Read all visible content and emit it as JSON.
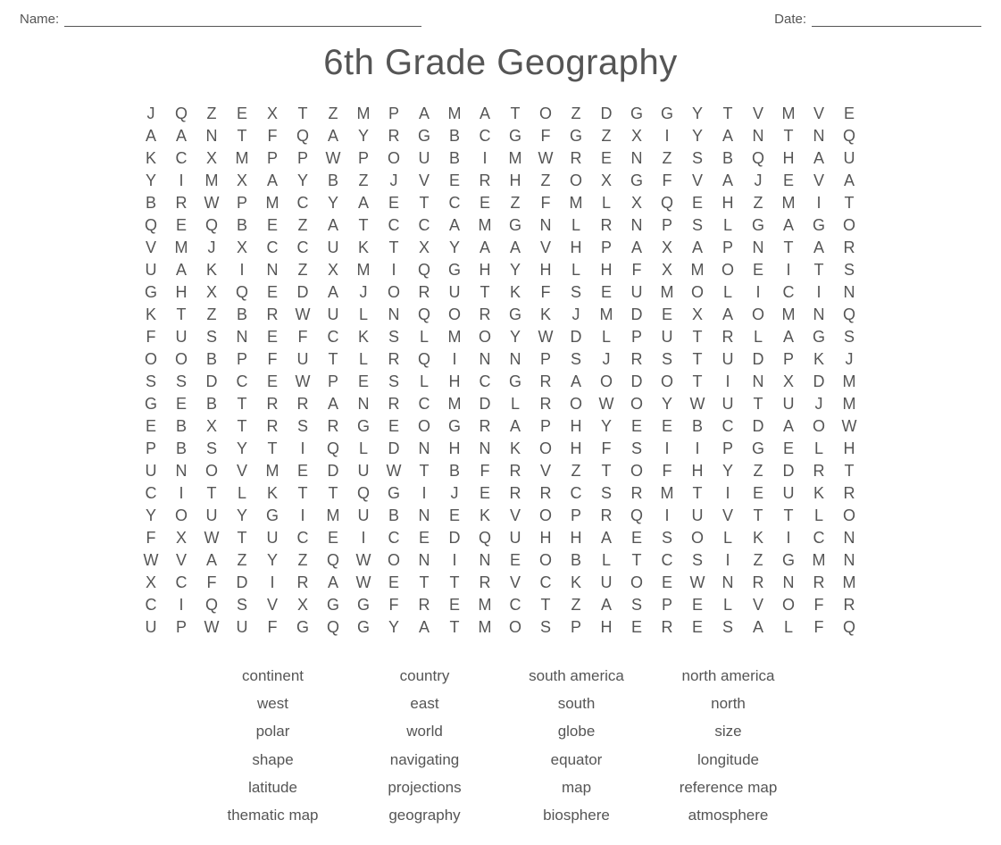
{
  "header": {
    "name_label": "Name:",
    "date_label": "Date:"
  },
  "title": "6th Grade Geography",
  "grid": {
    "rows": [
      [
        "J",
        "Q",
        "Z",
        "E",
        "X",
        "T",
        "Z",
        "M",
        "P",
        "A",
        "M",
        "A",
        "T",
        "O",
        "Z",
        "D",
        "G",
        "G",
        "Y",
        "T",
        "V",
        "M",
        "V",
        "E"
      ],
      [
        "A",
        "A",
        "N",
        "T",
        "F",
        "Q",
        "A",
        "Y",
        "R",
        "G",
        "B",
        "C",
        "G",
        "F",
        "G",
        "Z",
        "X",
        "I",
        "Y",
        "A",
        "N",
        "T",
        "N",
        "Q"
      ],
      [
        "K",
        "C",
        "X",
        "M",
        "P",
        "P",
        "W",
        "P",
        "O",
        "U",
        "B",
        "I",
        "M",
        "W",
        "R",
        "E",
        "N",
        "Z",
        "S",
        "B",
        "Q",
        "H",
        "A",
        "U"
      ],
      [
        "Y",
        "I",
        "M",
        "X",
        "A",
        "Y",
        "B",
        "Z",
        "J",
        "V",
        "E",
        "R",
        "H",
        "Z",
        "O",
        "X",
        "G",
        "F",
        "V",
        "A",
        "J",
        "E",
        "V",
        "A"
      ],
      [
        "B",
        "R",
        "W",
        "P",
        "M",
        "C",
        "Y",
        "A",
        "E",
        "T",
        "C",
        "E",
        "Z",
        "F",
        "M",
        "L",
        "X",
        "Q",
        "E",
        "H",
        "Z",
        "M",
        "I",
        "T"
      ],
      [
        "Q",
        "E",
        "Q",
        "B",
        "E",
        "Z",
        "A",
        "T",
        "C",
        "C",
        "A",
        "M",
        "G",
        "N",
        "L",
        "R",
        "N",
        "P",
        "S",
        "L",
        "G",
        "A",
        "G",
        "O"
      ],
      [
        "V",
        "M",
        "J",
        "X",
        "C",
        "C",
        "U",
        "K",
        "T",
        "X",
        "Y",
        "A",
        "A",
        "V",
        "H",
        "P",
        "A",
        "X",
        "A",
        "P",
        "N",
        "T",
        "A",
        "R"
      ],
      [
        "U",
        "A",
        "K",
        "I",
        "N",
        "Z",
        "X",
        "M",
        "I",
        "Q",
        "G",
        "H",
        "Y",
        "H",
        "L",
        "H",
        "F",
        "X",
        "M",
        "O",
        "E",
        "I",
        "T",
        "S"
      ],
      [
        "G",
        "H",
        "X",
        "Q",
        "E",
        "D",
        "A",
        "J",
        "O",
        "R",
        "U",
        "T",
        "K",
        "F",
        "S",
        "E",
        "U",
        "M",
        "O",
        "L",
        "I",
        "C",
        "I",
        "N"
      ],
      [
        "K",
        "T",
        "Z",
        "B",
        "R",
        "W",
        "U",
        "L",
        "N",
        "Q",
        "O",
        "R",
        "G",
        "K",
        "J",
        "M",
        "D",
        "E",
        "X",
        "A",
        "O",
        "M",
        "N",
        "Q"
      ],
      [
        "F",
        "U",
        "S",
        "N",
        "E",
        "F",
        "C",
        "K",
        "S",
        "L",
        "M",
        "O",
        "Y",
        "W",
        "D",
        "L",
        "P",
        "U",
        "T",
        "R",
        "L",
        "A",
        "G",
        "S"
      ],
      [
        "O",
        "O",
        "B",
        "P",
        "F",
        "U",
        "T",
        "L",
        "R",
        "Q",
        "I",
        "N",
        "N",
        "P",
        "S",
        "J",
        "R",
        "S",
        "T",
        "U",
        "D",
        "P",
        "K",
        "J"
      ],
      [
        "S",
        "S",
        "D",
        "C",
        "E",
        "W",
        "P",
        "E",
        "S",
        "L",
        "H",
        "C",
        "G",
        "R",
        "A",
        "O",
        "D",
        "O",
        "T",
        "I",
        "N",
        "X",
        "D",
        "M"
      ],
      [
        "G",
        "E",
        "B",
        "T",
        "R",
        "R",
        "A",
        "N",
        "R",
        "C",
        "M",
        "D",
        "L",
        "R",
        "O",
        "W",
        "O",
        "Y",
        "W",
        "U",
        "T",
        "U",
        "J",
        "M"
      ],
      [
        "E",
        "B",
        "X",
        "T",
        "R",
        "S",
        "R",
        "G",
        "E",
        "O",
        "G",
        "R",
        "A",
        "P",
        "H",
        "Y",
        "E",
        "E",
        "B",
        "C",
        "D",
        "A",
        "O",
        "W"
      ],
      [
        "P",
        "B",
        "S",
        "Y",
        "T",
        "I",
        "Q",
        "L",
        "D",
        "N",
        "H",
        "N",
        "K",
        "O",
        "H",
        "F",
        "S",
        "I",
        "I",
        "P",
        "G",
        "E",
        "L",
        "H"
      ],
      [
        "U",
        "N",
        "O",
        "V",
        "M",
        "E",
        "D",
        "U",
        "W",
        "T",
        "B",
        "F",
        "R",
        "V",
        "Z",
        "T",
        "O",
        "F",
        "H",
        "Y",
        "Z",
        "D",
        "R",
        "T"
      ],
      [
        "C",
        "I",
        "T",
        "L",
        "K",
        "T",
        "T",
        "Q",
        "G",
        "I",
        "J",
        "E",
        "R",
        "R",
        "C",
        "S",
        "R",
        "M",
        "T",
        "I",
        "E",
        "U",
        "K",
        "R"
      ],
      [
        "Y",
        "O",
        "U",
        "Y",
        "G",
        "I",
        "M",
        "U",
        "B",
        "N",
        "E",
        "K",
        "V",
        "O",
        "P",
        "R",
        "Q",
        "I",
        "U",
        "V",
        "T",
        "T",
        "L",
        "O"
      ],
      [
        "F",
        "X",
        "W",
        "T",
        "U",
        "C",
        "E",
        "I",
        "C",
        "E",
        "D",
        "Q",
        "U",
        "H",
        "H",
        "A",
        "E",
        "S",
        "O",
        "L",
        "K",
        "I",
        "C",
        "N"
      ],
      [
        "W",
        "V",
        "A",
        "Z",
        "Y",
        "Z",
        "Q",
        "W",
        "O",
        "N",
        "I",
        "N",
        "E",
        "O",
        "B",
        "L",
        "T",
        "C",
        "S",
        "I",
        "Z",
        "G",
        "M",
        "N"
      ],
      [
        "X",
        "C",
        "F",
        "D",
        "I",
        "R",
        "A",
        "W",
        "E",
        "T",
        "T",
        "R",
        "V",
        "C",
        "K",
        "U",
        "O",
        "E",
        "W",
        "N",
        "R",
        "N",
        "R",
        "M"
      ],
      [
        "C",
        "I",
        "Q",
        "S",
        "V",
        "X",
        "G",
        "G",
        "F",
        "R",
        "E",
        "M",
        "C",
        "T",
        "Z",
        "A",
        "S",
        "P",
        "E",
        "L",
        "V",
        "O",
        "F",
        "R"
      ],
      [
        "U",
        "P",
        "W",
        "U",
        "F",
        "G",
        "Q",
        "G",
        "Y",
        "A",
        "T",
        "M",
        "O",
        "S",
        "P",
        "H",
        "E",
        "R",
        "E",
        "S",
        "A",
        "L",
        "F",
        "Q"
      ]
    ],
    "cell_font_size": 18,
    "cell_color": "#555555",
    "cols": 24,
    "row_count": 24
  },
  "words": [
    "continent",
    "country",
    "south america",
    "north america",
    "west",
    "east",
    "south",
    "north",
    "polar",
    "world",
    "globe",
    "size",
    "shape",
    "navigating",
    "equator",
    "longitude",
    "latitude",
    "projections",
    "map",
    "reference map",
    "thematic map",
    "geography",
    "biosphere",
    "atmosphere"
  ],
  "style": {
    "page_bg": "#ffffff",
    "text_color": "#555555",
    "title_font_size": 40,
    "grid_cell_width": 34,
    "grid_cell_height": 25,
    "word_font_size": 17,
    "name_line_width": 400,
    "date_line_width": 190
  }
}
